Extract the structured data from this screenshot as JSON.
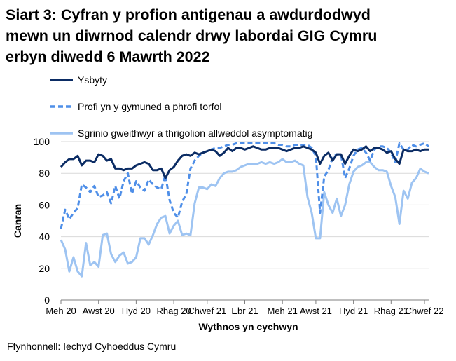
{
  "title_lines": [
    "Siart 3: Cyfran y profion antigenau a awdurdodwyd",
    "mewn un diwrnod calendr drwy labordai GIG Cymru",
    "erbyn diwedd 6 Mawrth 2022"
  ],
  "source": "Ffynhonnell: Iechyd Cyhoeddus Cymru",
  "colors": {
    "ysbyty": "#0b2c64",
    "profi": "#4f8fe8",
    "sgrinio": "#9ec4f2",
    "grid": "#d9d9d9",
    "axis": "#7f7f7f"
  },
  "chart_data": {
    "type": "line",
    "title": "Siart 3: Cyfran y profion antigenau a awdurdodwyd mewn un diwrnod calendr drwy labordai GIG Cymru erbyn diwedd 6 Mawrth 2022",
    "xlabel": "Wythnos yn cychwyn",
    "ylabel": "Canran",
    "ylim": [
      0,
      100
    ],
    "yticks": [
      0,
      20,
      40,
      60,
      80,
      100
    ],
    "grid": "horizontal",
    "legend_position": "top",
    "x_ticks": [
      "Meh 20",
      "Awst 20",
      "Hyd 20",
      "Rhag 20",
      "Chwef 21",
      "Ebr 21",
      "Meh 21",
      "Awst 21",
      "Hyd 21",
      "Rhag 21",
      "Chwef 22"
    ],
    "x_tick_positions": [
      0,
      9,
      18,
      27,
      35,
      44,
      53,
      61,
      70,
      79,
      87
    ],
    "x": [
      0,
      1,
      2,
      3,
      4,
      5,
      6,
      7,
      8,
      9,
      10,
      11,
      12,
      13,
      14,
      15,
      16,
      17,
      18,
      19,
      20,
      21,
      22,
      23,
      24,
      25,
      26,
      27,
      28,
      29,
      30,
      31,
      32,
      33,
      34,
      35,
      36,
      37,
      38,
      39,
      40,
      41,
      42,
      43,
      44,
      45,
      46,
      47,
      48,
      49,
      50,
      51,
      52,
      53,
      54,
      55,
      56,
      57,
      58,
      59,
      60,
      61,
      62,
      63,
      64,
      65,
      66,
      67,
      68,
      69,
      70,
      71,
      72,
      73,
      74,
      75,
      76,
      77,
      78,
      79,
      80,
      81,
      82,
      83,
      84,
      85,
      86,
      87,
      88
    ],
    "series": [
      {
        "name": "Ysbyty",
        "style": "solid",
        "values": [
          84,
          87,
          89,
          89,
          91,
          85,
          88,
          88,
          87,
          92,
          91,
          88,
          89,
          83,
          83,
          82,
          83,
          83,
          85,
          86,
          87,
          86,
          82,
          82,
          83,
          77,
          82,
          84,
          88,
          91,
          92,
          91,
          93,
          92,
          93,
          94,
          95,
          94,
          91,
          93,
          96,
          94,
          96,
          96,
          95,
          96,
          97,
          96,
          95,
          95,
          96,
          96,
          96,
          95,
          94,
          95,
          96,
          96,
          97,
          96,
          95,
          93,
          86,
          91,
          93,
          88,
          92,
          92,
          86,
          91,
          95,
          94,
          95,
          97,
          94,
          96,
          96,
          95,
          93,
          94,
          89,
          86,
          95,
          94,
          94,
          95,
          94,
          95,
          95
        ]
      },
      {
        "name": "Profi yn y gymuned a phrofi torfol",
        "style": "dashed",
        "values": [
          45,
          57,
          51,
          55,
          58,
          73,
          71,
          68,
          72,
          65,
          66,
          68,
          61,
          72,
          64,
          75,
          80,
          67,
          75,
          71,
          69,
          76,
          73,
          71,
          70,
          79,
          63,
          55,
          52,
          62,
          67,
          83,
          88,
          91,
          93,
          94,
          95,
          96,
          96,
          97,
          98,
          98,
          99,
          99,
          99,
          99,
          99,
          99,
          99,
          99,
          99,
          99,
          98,
          98,
          97,
          97,
          98,
          98,
          98,
          98,
          96,
          91,
          55,
          78,
          82,
          90,
          92,
          92,
          77,
          83,
          91,
          95,
          96,
          93,
          88,
          95,
          97,
          97,
          96,
          93,
          87,
          99,
          95,
          95,
          98,
          97,
          98,
          99,
          97
        ]
      },
      {
        "name": "Sgrinio gweithwyr a thrigolion allweddol asymptomatig",
        "style": "solid",
        "values": [
          38,
          32,
          18,
          27,
          18,
          15,
          36,
          22,
          24,
          21,
          41,
          42,
          29,
          24,
          28,
          30,
          23,
          24,
          27,
          39,
          39,
          35,
          41,
          48,
          52,
          53,
          42,
          47,
          50,
          41,
          42,
          41,
          61,
          71,
          71,
          70,
          73,
          72,
          77,
          80,
          81,
          81,
          82,
          84,
          85,
          86,
          86,
          86,
          87,
          86,
          87,
          86,
          87,
          89,
          87,
          87,
          88,
          86,
          85,
          65,
          55,
          39,
          39,
          68,
          60,
          55,
          64,
          53,
          60,
          73,
          81,
          84,
          85,
          87,
          87,
          84,
          82,
          82,
          81,
          72,
          65,
          48,
          69,
          64,
          74,
          77,
          83,
          81,
          80
        ]
      }
    ]
  },
  "legend": [
    {
      "label": "Ysbyty"
    },
    {
      "label": "Profi yn y gymuned a phrofi torfol"
    },
    {
      "label": "Sgrinio gweithwyr a thrigolion allweddol asymptomatig"
    }
  ]
}
